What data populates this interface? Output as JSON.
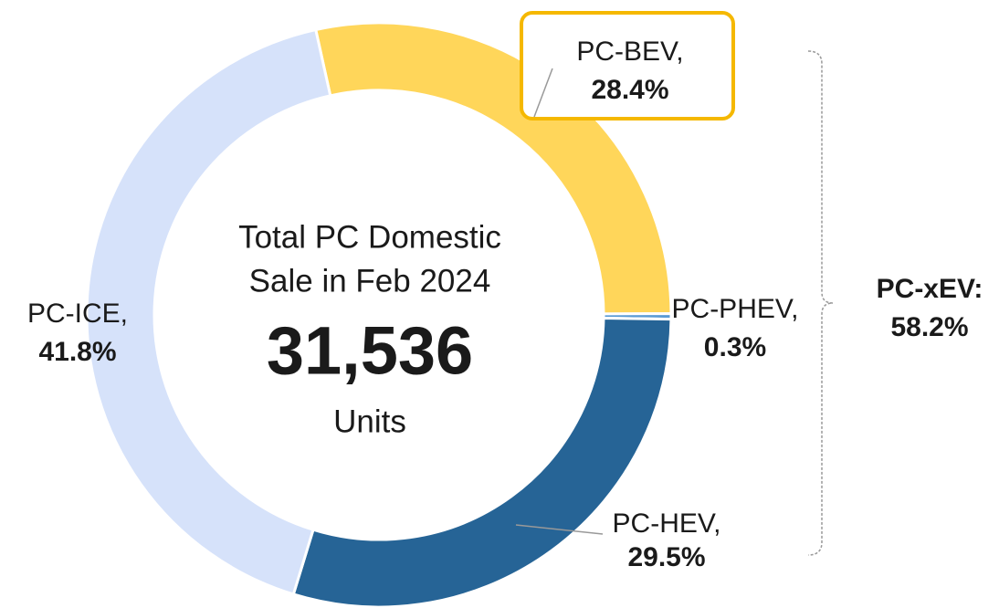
{
  "chart_data": {
    "type": "donut",
    "categories": [
      "PC-BEV,",
      "PC-PHEV,",
      "PC-HEV,",
      "PC-ICE,"
    ],
    "values": [
      28.4,
      0.3,
      29.5,
      41.8
    ],
    "value_labels": [
      "28.4%",
      "0.3%",
      "29.5%",
      "41.8%"
    ],
    "colors": [
      "#ffd65a",
      "#5b9bd5",
      "#266496",
      "#d6e2fa"
    ],
    "center_text": [
      "Total PC Domestic",
      "Sale in Feb 2024"
    ],
    "total": "31,536",
    "unit": "Units",
    "group_label": "PC-xEV:",
    "group_value_label": "58.2%"
  }
}
